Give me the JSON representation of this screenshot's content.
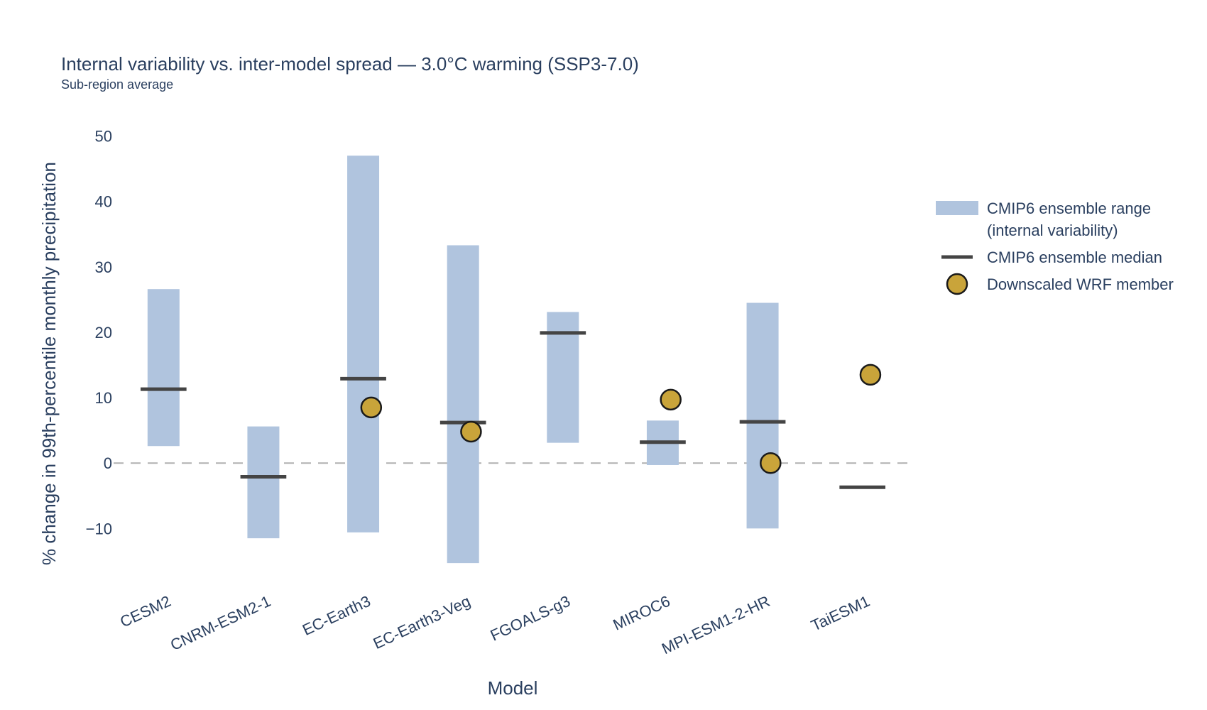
{
  "chart_data": {
    "type": "range-bar-median-dot",
    "title": "Internal variability vs. inter-model spread — 3.0°C warming (SSP3-7.0)",
    "subtitle": "Sub-region average",
    "xlabel": "Model",
    "ylabel": "% change in 99th-percentile monthly precipitation",
    "ylim": [
      -18,
      53
    ],
    "yticks": [
      -10,
      0,
      10,
      20,
      30,
      40,
      50
    ],
    "ytick_labels": [
      "−10",
      "0",
      "10",
      "20",
      "30",
      "40",
      "50"
    ],
    "zero_line": true,
    "grid": false,
    "legend_position": "right",
    "categories": [
      "CESM2",
      "CNRM-ESM2-1",
      "EC-Earth3",
      "EC-Earth3-Veg",
      "FGOALS-g3",
      "MIROC6",
      "MPI-ESM1-2-HR",
      "TaiESM1"
    ],
    "series": [
      {
        "name": "CMIP6 ensemble range (internal variability)",
        "legend_lines": [
          "CMIP6 ensemble range",
          "(internal variability)"
        ],
        "kind": "range",
        "color": "#b0c4de",
        "low": [
          2.6,
          -11.5,
          -10.6,
          -15.3,
          3.1,
          -0.3,
          -10.0,
          null
        ],
        "high": [
          26.6,
          5.6,
          47.0,
          33.3,
          23.1,
          6.5,
          24.5,
          null
        ]
      },
      {
        "name": "CMIP6 ensemble median",
        "legend_lines": [
          "CMIP6 ensemble median"
        ],
        "kind": "median",
        "color": "#444444",
        "values": [
          11.3,
          -2.1,
          12.9,
          6.2,
          19.9,
          3.2,
          6.3,
          -3.7
        ]
      },
      {
        "name": "Downscaled WRF member",
        "legend_lines": [
          "Downscaled WRF member"
        ],
        "kind": "point",
        "color": "#c9a43a",
        "edge_color": "#1a1a1a",
        "values": [
          null,
          null,
          8.5,
          4.8,
          null,
          9.7,
          0.0,
          13.5
        ]
      }
    ]
  }
}
